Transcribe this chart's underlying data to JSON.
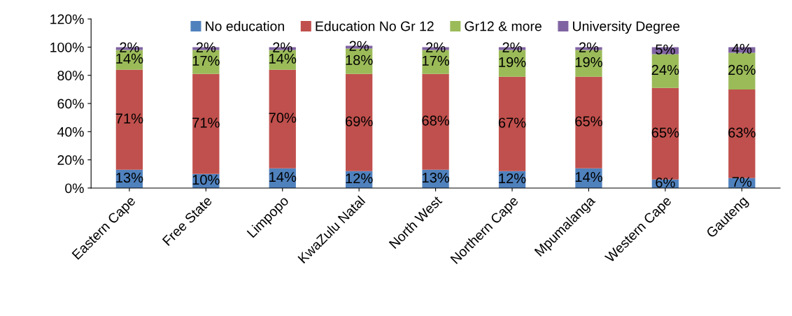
{
  "chart_data": {
    "type": "bar",
    "stacked": true,
    "categories": [
      "Eastern Cape",
      "Free State",
      "Limpopo",
      "KwaZulu Natal",
      "North West",
      "Northern Cape",
      "Mpumalanga",
      "Western Cape",
      "Gauteng"
    ],
    "series": [
      {
        "name": "No education",
        "color": "#4f81bd",
        "values": [
          13,
          10,
          14,
          12,
          13,
          12,
          14,
          6,
          7
        ],
        "value_labels": [
          "13%",
          "10%",
          "14%",
          "12%",
          "13%",
          "12%",
          "14%",
          "6%",
          "7%"
        ]
      },
      {
        "name": "Education No Gr 12",
        "color": "#c0504d",
        "values": [
          71,
          71,
          70,
          69,
          68,
          67,
          65,
          65,
          63
        ],
        "value_labels": [
          "71%",
          "71%",
          "70%",
          "69%",
          "68%",
          "67%",
          "65%",
          "65%",
          "63%"
        ]
      },
      {
        "name": "Gr12 & more",
        "color": "#9bbb59",
        "values": [
          14,
          17,
          14,
          18,
          17,
          19,
          19,
          24,
          26
        ],
        "value_labels": [
          "14%",
          "17%",
          "14%",
          "18%",
          "17%",
          "19%",
          "19%",
          "24%",
          "26%"
        ]
      },
      {
        "name": "University Degree",
        "color": "#8064a2",
        "values": [
          2,
          2,
          2,
          2,
          2,
          2,
          2,
          5,
          4
        ],
        "value_labels": [
          "2%",
          "2%",
          "2%",
          "2%",
          "2%",
          "2%",
          "2%",
          "5%",
          "4%"
        ]
      }
    ],
    "ylim": [
      0,
      120
    ],
    "yticks": [
      {
        "value": 0,
        "label": "0%"
      },
      {
        "value": 20,
        "label": "20%"
      },
      {
        "value": 40,
        "label": "40%"
      },
      {
        "value": 60,
        "label": "60%"
      },
      {
        "value": 80,
        "label": "80%"
      },
      {
        "value": 100,
        "label": "100%"
      },
      {
        "value": 120,
        "label": "120%"
      }
    ],
    "grid": false,
    "legend": "top"
  }
}
